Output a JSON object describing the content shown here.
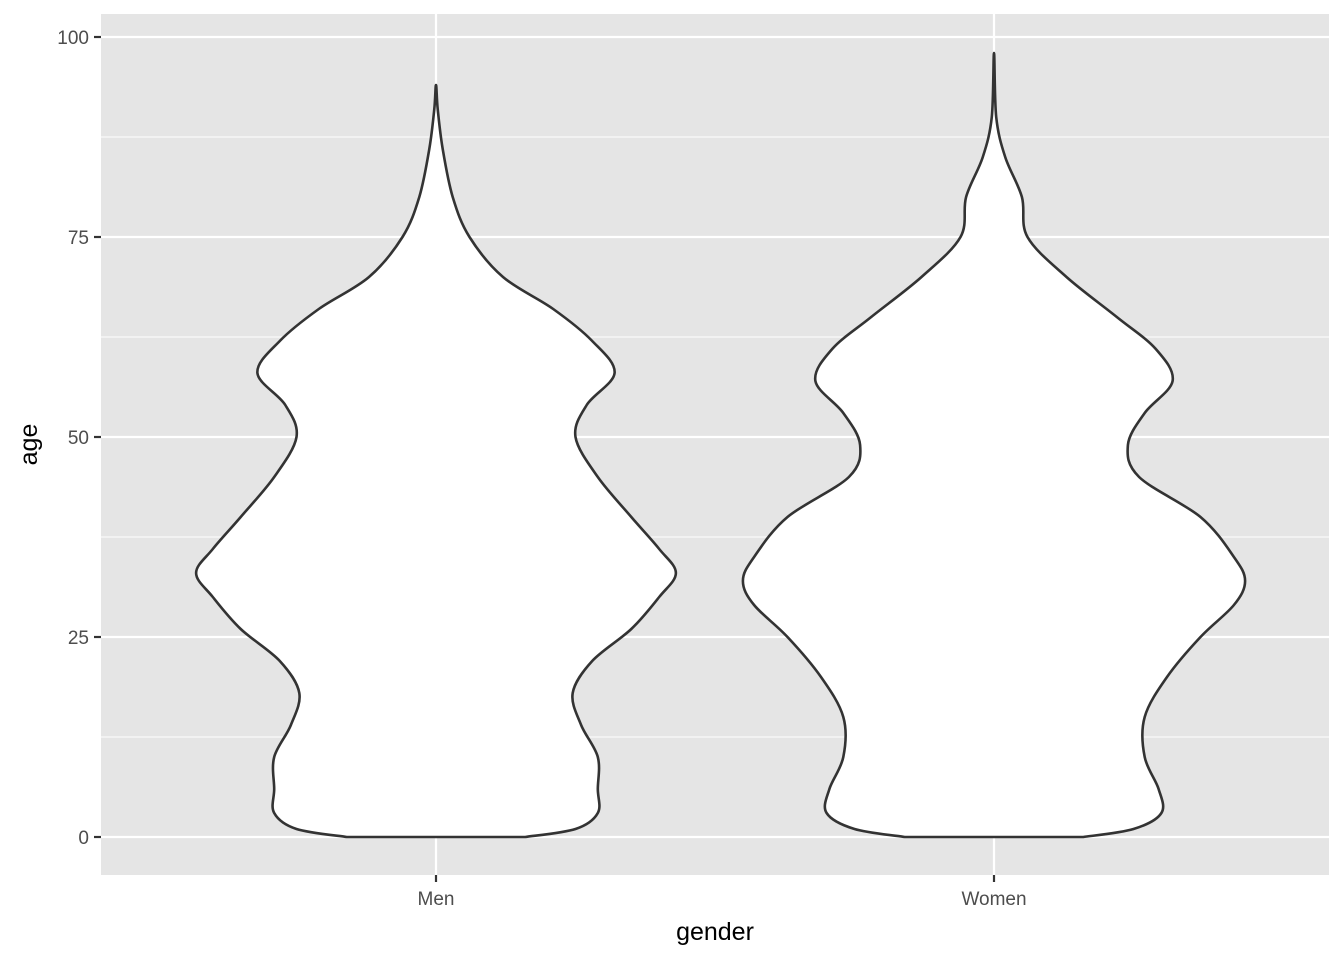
{
  "chart_data": {
    "type": "violin",
    "title": "",
    "xlabel": "gender",
    "ylabel": "age",
    "categories": [
      "Men",
      "Women"
    ],
    "ylim": [
      -5,
      103
    ],
    "yticks": [
      0,
      25,
      50,
      75,
      100
    ],
    "grid": true,
    "colors": {
      "panel": "#e5e5e5",
      "grid": "#ffffff",
      "outline": "#333333",
      "fill": "#ffffff"
    },
    "violins": [
      {
        "category": "Men",
        "range": [
          0,
          94
        ],
        "density_profile": [
          {
            "age": 0,
            "halfwidth": 0.16
          },
          {
            "age": 1,
            "halfwidth": 0.25
          },
          {
            "age": 3,
            "halfwidth": 0.29
          },
          {
            "age": 6,
            "halfwidth": 0.29
          },
          {
            "age": 10,
            "halfwidth": 0.29
          },
          {
            "age": 14,
            "halfwidth": 0.26
          },
          {
            "age": 18,
            "halfwidth": 0.245
          },
          {
            "age": 22,
            "halfwidth": 0.28
          },
          {
            "age": 26,
            "halfwidth": 0.35
          },
          {
            "age": 30,
            "halfwidth": 0.4
          },
          {
            "age": 33,
            "halfwidth": 0.43
          },
          {
            "age": 36,
            "halfwidth": 0.4
          },
          {
            "age": 40,
            "halfwidth": 0.35
          },
          {
            "age": 45,
            "halfwidth": 0.29
          },
          {
            "age": 50,
            "halfwidth": 0.25
          },
          {
            "age": 54,
            "halfwidth": 0.27
          },
          {
            "age": 58,
            "halfwidth": 0.32
          },
          {
            "age": 62,
            "halfwidth": 0.28
          },
          {
            "age": 66,
            "halfwidth": 0.21
          },
          {
            "age": 70,
            "halfwidth": 0.12
          },
          {
            "age": 75,
            "halfwidth": 0.06
          },
          {
            "age": 80,
            "halfwidth": 0.03
          },
          {
            "age": 86,
            "halfwidth": 0.012
          },
          {
            "age": 91,
            "halfwidth": 0.003
          },
          {
            "age": 94,
            "halfwidth": 0.0
          }
        ]
      },
      {
        "category": "Women",
        "range": [
          0,
          98
        ],
        "density_profile": [
          {
            "age": 0,
            "halfwidth": 0.16
          },
          {
            "age": 1,
            "halfwidth": 0.25
          },
          {
            "age": 3,
            "halfwidth": 0.3
          },
          {
            "age": 6,
            "halfwidth": 0.295
          },
          {
            "age": 10,
            "halfwidth": 0.27
          },
          {
            "age": 15,
            "halfwidth": 0.27
          },
          {
            "age": 20,
            "halfwidth": 0.31
          },
          {
            "age": 25,
            "halfwidth": 0.37
          },
          {
            "age": 29,
            "halfwidth": 0.43
          },
          {
            "age": 32,
            "halfwidth": 0.45
          },
          {
            "age": 35,
            "halfwidth": 0.43
          },
          {
            "age": 40,
            "halfwidth": 0.37
          },
          {
            "age": 45,
            "halfwidth": 0.26
          },
          {
            "age": 49,
            "halfwidth": 0.24
          },
          {
            "age": 53,
            "halfwidth": 0.27
          },
          {
            "age": 57,
            "halfwidth": 0.32
          },
          {
            "age": 61,
            "halfwidth": 0.29
          },
          {
            "age": 65,
            "halfwidth": 0.22
          },
          {
            "age": 70,
            "halfwidth": 0.13
          },
          {
            "age": 75,
            "halfwidth": 0.06
          },
          {
            "age": 80,
            "halfwidth": 0.05
          },
          {
            "age": 85,
            "halfwidth": 0.02
          },
          {
            "age": 90,
            "halfwidth": 0.004
          },
          {
            "age": 98,
            "halfwidth": 0.0
          }
        ]
      }
    ]
  }
}
